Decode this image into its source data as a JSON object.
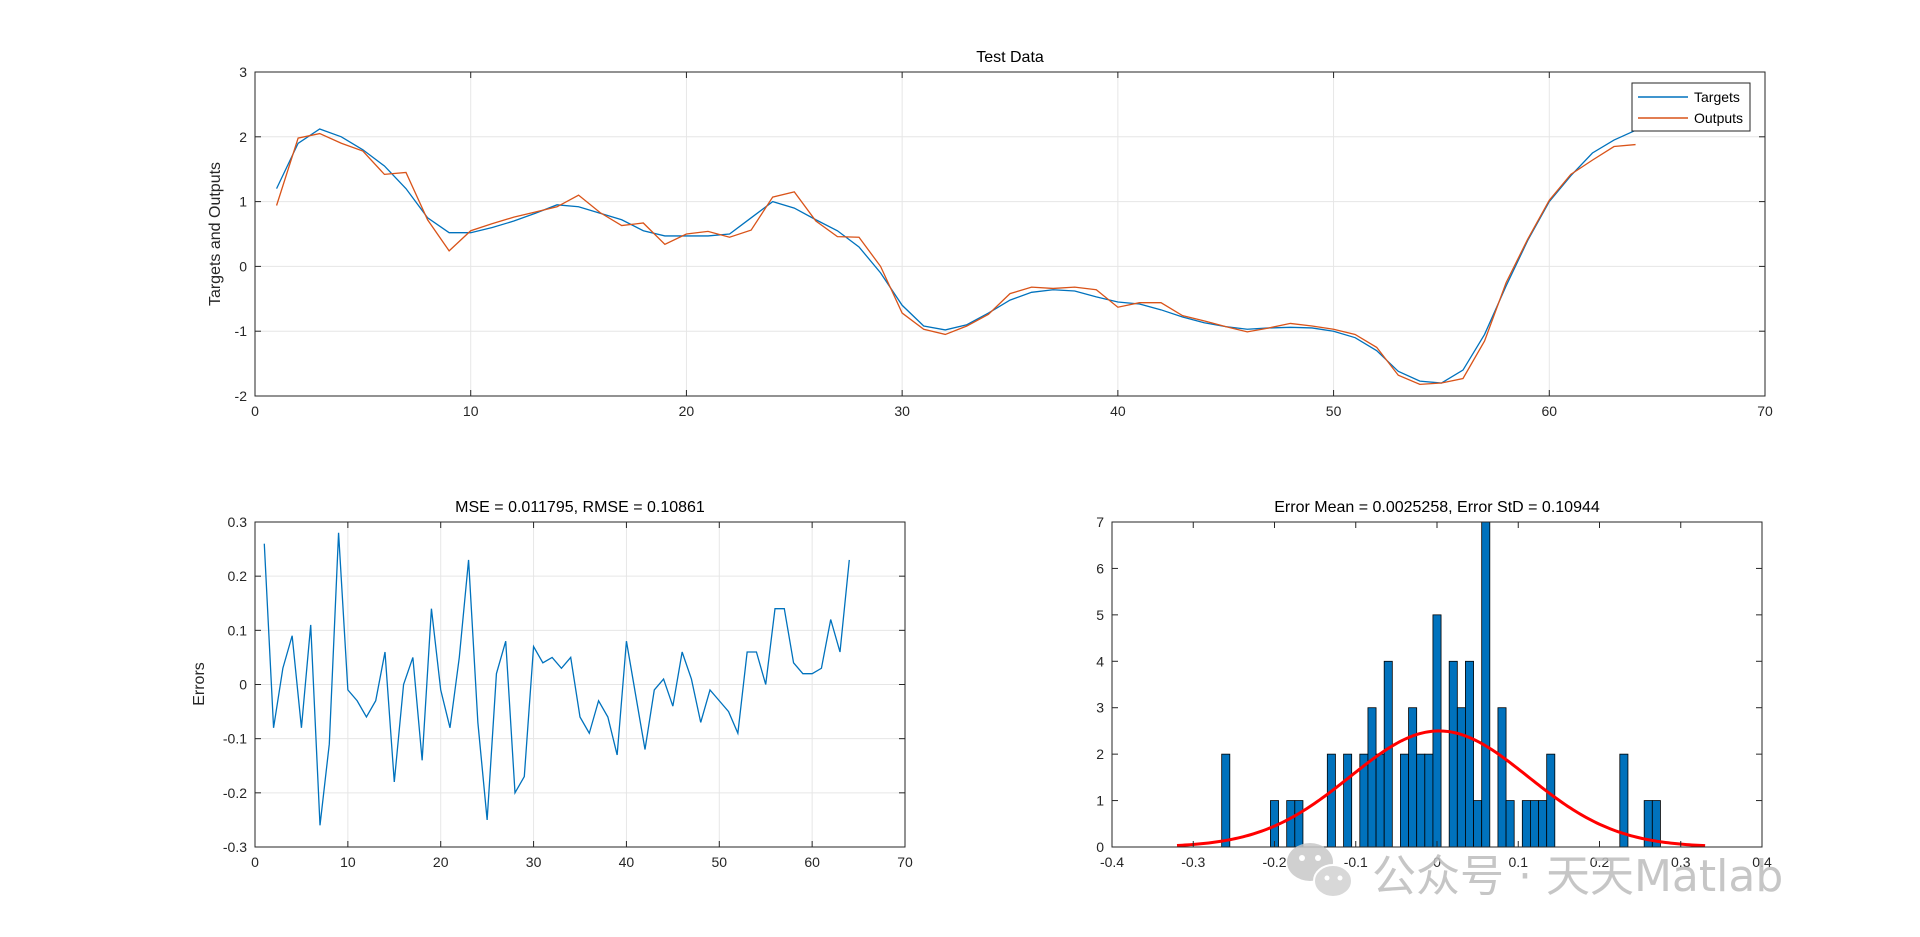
{
  "watermark": {
    "text": "公众号 · 天天Matlab",
    "icon": "wechat-icon"
  },
  "chart_data": [
    {
      "type": "line",
      "title": "Test Data",
      "xlabel": "",
      "ylabel": "Targets and Outputs",
      "xlim": [
        0,
        70
      ],
      "ylim": [
        -2,
        3
      ],
      "xticks": [
        0,
        10,
        20,
        30,
        40,
        50,
        60,
        70
      ],
      "yticks": [
        -2,
        -1,
        0,
        1,
        2,
        3
      ],
      "grid": true,
      "legend": "top-right",
      "series": [
        {
          "name": "Targets",
          "color": "#0072BD",
          "x": [
            1,
            2,
            3,
            4,
            5,
            6,
            7,
            8,
            9,
            10,
            11,
            12,
            13,
            14,
            15,
            16,
            17,
            18,
            19,
            20,
            21,
            22,
            23,
            24,
            25,
            26,
            27,
            28,
            29,
            30,
            31,
            32,
            33,
            34,
            35,
            36,
            37,
            38,
            39,
            40,
            41,
            42,
            43,
            44,
            45,
            46,
            47,
            48,
            49,
            50,
            51,
            52,
            53,
            54,
            55,
            56,
            57,
            58,
            59,
            60,
            61,
            62,
            63,
            64
          ],
          "values": [
            1.2,
            1.9,
            2.12,
            2.0,
            1.8,
            1.55,
            1.2,
            0.75,
            0.52,
            0.52,
            0.6,
            0.7,
            0.82,
            0.95,
            0.92,
            0.82,
            0.72,
            0.55,
            0.47,
            0.47,
            0.47,
            0.5,
            0.75,
            1.0,
            0.9,
            0.72,
            0.55,
            0.3,
            -0.1,
            -0.6,
            -0.92,
            -0.98,
            -0.9,
            -0.72,
            -0.52,
            -0.4,
            -0.36,
            -0.38,
            -0.47,
            -0.55,
            -0.58,
            -0.67,
            -0.78,
            -0.87,
            -0.93,
            -0.97,
            -0.95,
            -0.94,
            -0.95,
            -1.0,
            -1.1,
            -1.3,
            -1.62,
            -1.77,
            -1.8,
            -1.6,
            -1.05,
            -0.3,
            0.4,
            1.0,
            1.4,
            1.75,
            1.95,
            2.1
          ]
        },
        {
          "name": "Outputs",
          "color": "#D95319",
          "x": [
            1,
            2,
            3,
            4,
            5,
            6,
            7,
            8,
            9,
            10,
            11,
            12,
            13,
            14,
            15,
            16,
            17,
            18,
            19,
            20,
            21,
            22,
            23,
            24,
            25,
            26,
            27,
            28,
            29,
            30,
            31,
            32,
            33,
            34,
            35,
            36,
            37,
            38,
            39,
            40,
            41,
            42,
            43,
            44,
            45,
            46,
            47,
            48,
            49,
            50,
            51,
            52,
            53,
            54,
            55,
            56,
            57,
            58,
            59,
            60,
            61,
            62,
            63,
            64
          ],
          "values": [
            0.94,
            1.98,
            2.05,
            1.9,
            1.78,
            1.42,
            1.45,
            0.72,
            0.24,
            0.55,
            0.66,
            0.76,
            0.84,
            0.92,
            1.1,
            0.83,
            0.63,
            0.67,
            0.34,
            0.5,
            0.54,
            0.45,
            0.56,
            1.07,
            1.15,
            0.7,
            0.46,
            0.45,
            0.0,
            -0.72,
            -0.97,
            -1.05,
            -0.92,
            -0.74,
            -0.42,
            -0.32,
            -0.34,
            -0.32,
            -0.36,
            -0.63,
            -0.56,
            -0.56,
            -0.76,
            -0.84,
            -0.93,
            -1.01,
            -0.95,
            -0.88,
            -0.92,
            -0.97,
            -1.05,
            -1.25,
            -1.68,
            -1.82,
            -1.8,
            -1.73,
            -1.15,
            -0.25,
            0.42,
            1.02,
            1.42,
            1.64,
            1.85,
            1.88
          ]
        }
      ]
    },
    {
      "type": "line",
      "title": "MSE = 0.011795, RMSE = 0.10861",
      "xlabel": "",
      "ylabel": "Errors",
      "xlim": [
        0,
        70
      ],
      "ylim": [
        -0.3,
        0.3
      ],
      "xticks": [
        0,
        10,
        20,
        30,
        40,
        50,
        60,
        70
      ],
      "yticks": [
        -0.3,
        -0.2,
        -0.1,
        0,
        0.1,
        0.2,
        0.3
      ],
      "grid": true,
      "series": [
        {
          "color": "#0072BD",
          "x": [
            1,
            2,
            3,
            4,
            5,
            6,
            7,
            8,
            9,
            10,
            11,
            12,
            13,
            14,
            15,
            16,
            17,
            18,
            19,
            20,
            21,
            22,
            23,
            24,
            25,
            26,
            27,
            28,
            29,
            30,
            31,
            32,
            33,
            34,
            35,
            36,
            37,
            38,
            39,
            40,
            41,
            42,
            43,
            44,
            45,
            46,
            47,
            48,
            49,
            50,
            51,
            52,
            53,
            54,
            55,
            56,
            57,
            58,
            59,
            60,
            61,
            62,
            63,
            64
          ],
          "values": [
            0.26,
            -0.08,
            0.03,
            0.09,
            -0.08,
            0.11,
            -0.26,
            -0.11,
            0.28,
            -0.01,
            -0.03,
            -0.06,
            -0.03,
            0.06,
            -0.18,
            0.0,
            0.05,
            -0.14,
            0.14,
            -0.01,
            -0.08,
            0.05,
            0.23,
            -0.07,
            -0.25,
            0.02,
            0.08,
            -0.2,
            -0.17,
            0.07,
            0.04,
            0.05,
            0.03,
            0.05,
            -0.06,
            -0.09,
            -0.03,
            -0.06,
            -0.13,
            0.08,
            -0.02,
            -0.12,
            -0.01,
            0.01,
            -0.04,
            0.06,
            0.01,
            -0.07,
            -0.01,
            -0.03,
            -0.05,
            -0.09,
            0.06,
            0.06,
            0.0,
            0.14,
            0.14,
            0.04,
            0.02,
            0.02,
            0.03,
            0.12,
            0.06,
            0.23
          ]
        }
      ]
    },
    {
      "type": "bar",
      "subtype": "histogram",
      "title": "Error Mean = 0.0025258, Error StD = 0.10944",
      "xlabel": "",
      "ylabel": "",
      "xlim": [
        -0.4,
        0.4
      ],
      "ylim": [
        0,
        7
      ],
      "xticks": [
        -0.4,
        -0.3,
        -0.2,
        -0.1,
        0,
        0.1,
        0.2,
        0.3,
        0.4
      ],
      "yticks": [
        0,
        1,
        2,
        3,
        4,
        5,
        6,
        7
      ],
      "grid": false,
      "bar_color": "#0072BD",
      "bin_width": 0.01,
      "bins": [
        {
          "x": -0.26,
          "count": 2
        },
        {
          "x": -0.2,
          "count": 1
        },
        {
          "x": -0.18,
          "count": 1
        },
        {
          "x": -0.17,
          "count": 1
        },
        {
          "x": -0.13,
          "count": 2
        },
        {
          "x": -0.11,
          "count": 2
        },
        {
          "x": -0.09,
          "count": 2
        },
        {
          "x": -0.08,
          "count": 3
        },
        {
          "x": -0.07,
          "count": 2
        },
        {
          "x": -0.06,
          "count": 4
        },
        {
          "x": -0.04,
          "count": 2
        },
        {
          "x": -0.03,
          "count": 3
        },
        {
          "x": -0.02,
          "count": 2
        },
        {
          "x": -0.01,
          "count": 2
        },
        {
          "x": 0.0,
          "count": 5
        },
        {
          "x": 0.02,
          "count": 4
        },
        {
          "x": 0.03,
          "count": 3
        },
        {
          "x": 0.04,
          "count": 4
        },
        {
          "x": 0.05,
          "count": 1
        },
        {
          "x": 0.06,
          "count": 7
        },
        {
          "x": 0.08,
          "count": 3
        },
        {
          "x": 0.09,
          "count": 1
        },
        {
          "x": 0.11,
          "count": 1
        },
        {
          "x": 0.12,
          "count": 1
        },
        {
          "x": 0.13,
          "count": 1
        },
        {
          "x": 0.14,
          "count": 2
        },
        {
          "x": 0.23,
          "count": 2
        },
        {
          "x": 0.26,
          "count": 1
        },
        {
          "x": 0.27,
          "count": 1
        }
      ],
      "fit": {
        "color": "#FF0000",
        "mean": 0.0025258,
        "std": 0.10944,
        "x_range": [
          -0.32,
          0.33
        ],
        "peak": 2.5
      }
    }
  ]
}
